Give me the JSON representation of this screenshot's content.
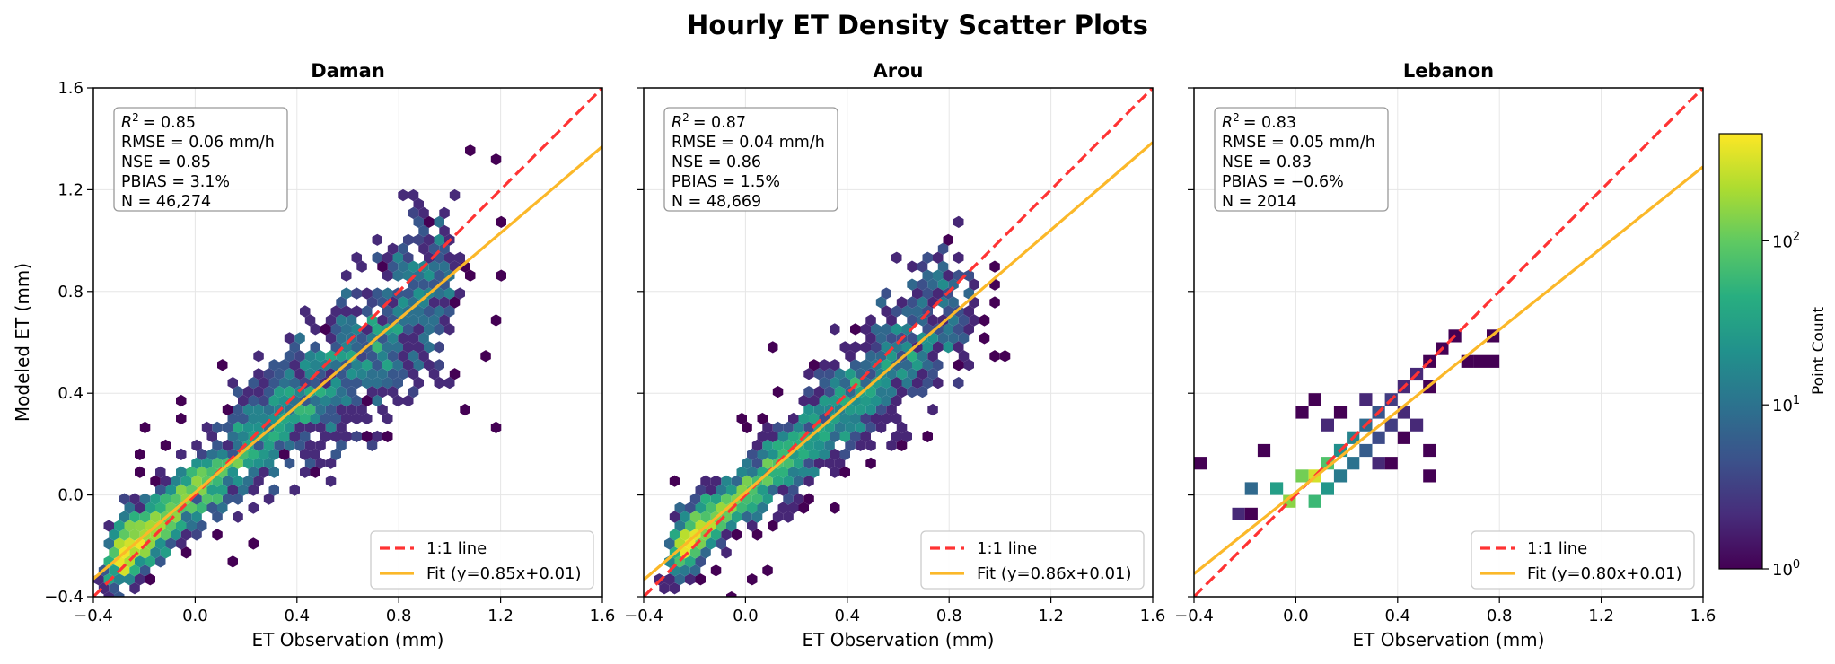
{
  "suptitle": "Hourly ET Density Scatter Plots",
  "colorbar": {
    "label": "Point Count",
    "ticks": [
      {
        "base": "10",
        "exp": "0",
        "value": 1
      },
      {
        "base": "10",
        "exp": "1",
        "value": 10
      },
      {
        "base": "10",
        "exp": "2",
        "value": 100
      }
    ],
    "range": [
      1,
      450
    ],
    "colormap": "viridis"
  },
  "legend_labels": {
    "one_to_one": "1:1 line"
  },
  "colors": {
    "one_to_one": "#ff3333",
    "fit": "#fbb829",
    "grid": "#e6e6e6"
  },
  "chart_data": [
    {
      "type": "scatter",
      "title": "Daman",
      "xlabel": "ET Observation (mm)",
      "ylabel": "Modeled ET (mm)",
      "xlim": [
        -0.4,
        1.6
      ],
      "ylim": [
        -0.4,
        1.6
      ],
      "xticks": [
        "−0.4",
        "0.0",
        "0.4",
        "0.8",
        "1.2",
        "1.6"
      ],
      "yticks": [
        "−0.4",
        "0.0",
        "0.4",
        "0.8",
        "1.2",
        "1.6"
      ],
      "density_style": "hexbin",
      "stats": {
        "r2": "= 0.85",
        "rmse": "RMSE = 0.06 mm/h",
        "nse": "NSE = 0.85",
        "pbias": "PBIAS = 3.1%",
        "n": "N = 46,274"
      },
      "fit": {
        "slope": 0.85,
        "intercept": 0.01,
        "label": "Fit (y=0.85x+0.01)"
      },
      "cloud": {
        "xmin": -0.3,
        "xmax": 1.0,
        "spread": 0.16,
        "seed": 11,
        "count": 1800,
        "outliers": 70,
        "outlierSpread": 0.45,
        "maxCount": 400
      },
      "extra_points": [
        [
          1.18,
          0.25
        ],
        [
          1.2,
          0.67
        ],
        [
          1.15,
          0.55
        ],
        [
          1.02,
          0.75
        ],
        [
          0.95,
          0.57
        ],
        [
          1.08,
          0.32
        ]
      ]
    },
    {
      "type": "scatter",
      "title": "Arou",
      "xlabel": "ET Observation (mm)",
      "ylabel": "",
      "xlim": [
        -0.4,
        1.6
      ],
      "ylim": [
        -0.4,
        1.6
      ],
      "xticks": [
        "−0.4",
        "0.0",
        "0.4",
        "0.8",
        "1.2",
        "1.6"
      ],
      "yticks": [],
      "density_style": "hexbin",
      "stats": {
        "r2": "= 0.87",
        "rmse": "RMSE = 0.04 mm/h",
        "nse": "NSE = 0.86",
        "pbias": "PBIAS = 1.5%",
        "n": "N = 48,669"
      },
      "fit": {
        "slope": 0.86,
        "intercept": 0.01,
        "label": "Fit (y=0.86x+0.01)"
      },
      "cloud": {
        "xmin": -0.25,
        "xmax": 0.85,
        "spread": 0.13,
        "seed": 23,
        "count": 1700,
        "outliers": 50,
        "outlierSpread": 0.35,
        "maxCount": 400
      },
      "extra_points": [
        [
          -0.27,
          0.05
        ],
        [
          0.94,
          0.7
        ],
        [
          0.85,
          0.6
        ],
        [
          0.1,
          0.57
        ],
        [
          0.72,
          0.22
        ]
      ]
    },
    {
      "type": "scatter",
      "title": "Lebanon",
      "xlabel": "ET Observation (mm)",
      "ylabel": "",
      "xlim": [
        -0.4,
        1.6
      ],
      "ylim": [
        -0.4,
        1.6
      ],
      "xticks": [
        "−0.4",
        "0.0",
        "0.4",
        "0.8",
        "1.2",
        "1.6"
      ],
      "yticks": [],
      "density_style": "squarebin",
      "stats": {
        "r2": "= 0.83",
        "rmse": "RMSE = 0.05 mm/h",
        "nse": "NSE = 0.83",
        "pbias": "PBIAS = −0.6%",
        "n": "N = 2014"
      },
      "fit": {
        "slope": 0.8,
        "intercept": 0.01,
        "label": "Fit (y=0.80x+0.01)"
      },
      "cells": [
        [
          -0.4,
          0.1,
          1
        ],
        [
          -0.25,
          -0.1,
          2
        ],
        [
          -0.2,
          0.0,
          8
        ],
        [
          -0.1,
          0.0,
          30
        ],
        [
          -0.05,
          -0.05,
          150
        ],
        [
          0.0,
          0.05,
          120
        ],
        [
          0.05,
          0.05,
          300
        ],
        [
          0.05,
          -0.05,
          60
        ],
        [
          0.1,
          0.1,
          80
        ],
        [
          0.1,
          0.0,
          25
        ],
        [
          0.15,
          0.15,
          20
        ],
        [
          0.15,
          0.05,
          12
        ],
        [
          0.2,
          0.2,
          15
        ],
        [
          0.2,
          0.1,
          10
        ],
        [
          0.25,
          0.25,
          8
        ],
        [
          0.25,
          0.15,
          6
        ],
        [
          0.3,
          0.3,
          5
        ],
        [
          0.3,
          0.2,
          4
        ],
        [
          0.35,
          0.35,
          3
        ],
        [
          0.35,
          0.25,
          3
        ],
        [
          0.4,
          0.4,
          2
        ],
        [
          0.4,
          0.3,
          2
        ],
        [
          0.45,
          0.45,
          2
        ],
        [
          0.5,
          0.5,
          1
        ],
        [
          0.55,
          0.55,
          1
        ],
        [
          0.6,
          0.6,
          1
        ],
        [
          0.65,
          0.5,
          1
        ],
        [
          0.7,
          0.5,
          1
        ],
        [
          0.75,
          0.5,
          1
        ],
        [
          0.75,
          0.6,
          1
        ],
        [
          0.5,
          0.4,
          1
        ],
        [
          0.45,
          0.25,
          2
        ],
        [
          0.5,
          0.15,
          1
        ],
        [
          0.35,
          0.1,
          1
        ],
        [
          0.0,
          0.3,
          1
        ],
        [
          0.05,
          0.35,
          1
        ],
        [
          0.1,
          0.25,
          2
        ],
        [
          -0.15,
          0.15,
          1
        ],
        [
          0.25,
          0.35,
          2
        ],
        [
          0.4,
          0.2,
          1
        ],
        [
          0.5,
          0.05,
          1
        ],
        [
          -0.2,
          -0.1,
          1
        ],
        [
          0.15,
          0.3,
          1
        ],
        [
          0.3,
          0.1,
          2
        ]
      ]
    }
  ]
}
